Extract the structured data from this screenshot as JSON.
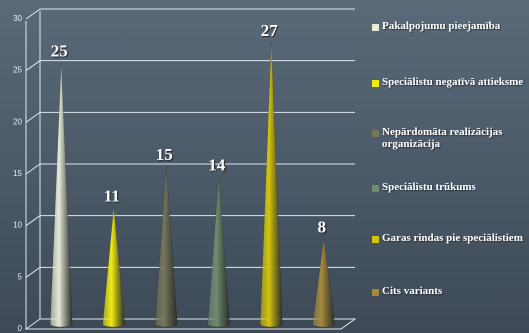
{
  "chart_data": {
    "type": "bar",
    "bar_shape": "cone",
    "categories": [
      "Pakalpojumu pieejamība",
      "Speciālistu negatīvā attieksme",
      "Nepārdomāta realizācijas organizācija",
      "Speciālistu trūkums",
      "Garas rindas pie speciālistiem",
      "Cits variants"
    ],
    "values": [
      25,
      11,
      15,
      14,
      27,
      8
    ],
    "colors": [
      "#e6ead6",
      "#f0ec10",
      "#76765c",
      "#6e8c70",
      "#d4c40c",
      "#a58a3e"
    ],
    "yticks": [
      "0",
      "5",
      "10",
      "15",
      "20",
      "25",
      "30"
    ],
    "ylim": [
      0,
      30
    ],
    "grid": true,
    "legend_position": "right"
  }
}
